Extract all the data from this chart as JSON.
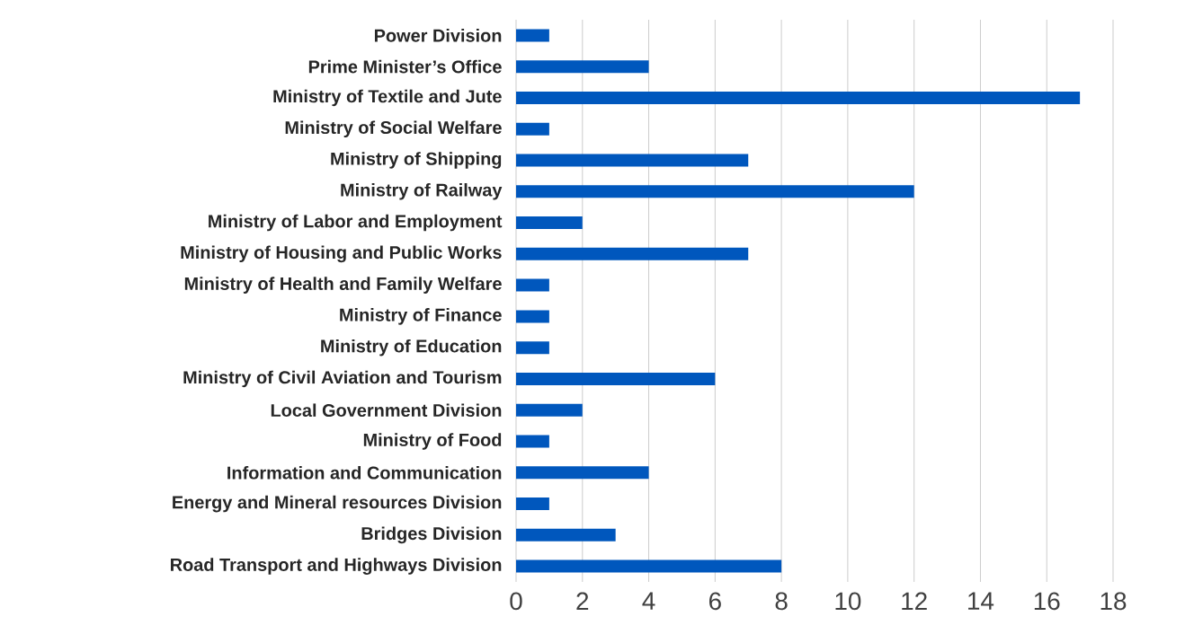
{
  "chart_data": {
    "type": "bar",
    "orientation": "horizontal",
    "categories": [
      "Power Division",
      "Prime Minister’s Office",
      "Ministry of Textile and Jute",
      "Ministry of Social Welfare",
      "Ministry of Shipping",
      "Ministry of Railway",
      "Ministry of Labor and Employment",
      "Ministry of Housing and Public Works",
      "Ministry of Health and Family Welfare",
      "Ministry of Finance",
      "Ministry of Education",
      "Ministry of Civil Aviation and Tourism",
      "Local Government Division",
      "Ministry of Food",
      "Information and Communication",
      "Energy and Mineral resources Division",
      "Bridges Division",
      "Road Transport and Highways Division"
    ],
    "values": [
      1,
      4,
      17,
      1,
      7,
      12,
      2,
      7,
      1,
      1,
      1,
      6,
      2,
      1,
      4,
      1,
      3,
      8
    ],
    "color": "#0057bd",
    "xlim": [
      0,
      18
    ],
    "xticks": [
      0,
      2,
      4,
      6,
      8,
      10,
      12,
      14,
      16,
      18
    ],
    "grid": "x"
  }
}
